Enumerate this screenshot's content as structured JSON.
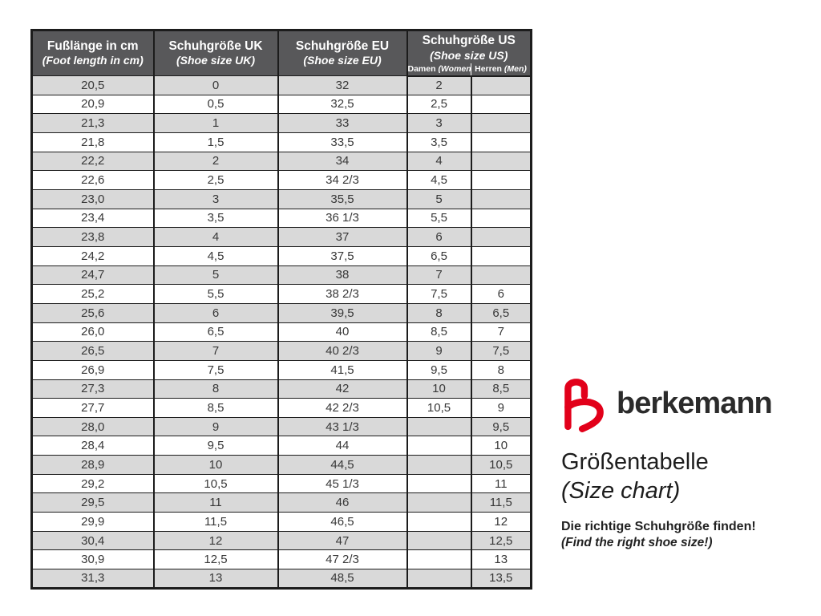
{
  "table": {
    "columns": [
      {
        "title": "Fußlänge in cm",
        "subtitle": "(Foot length in cm)"
      },
      {
        "title": "Schuhgröße UK",
        "subtitle": "(Shoe size UK)"
      },
      {
        "title": "Schuhgröße EU",
        "subtitle": "(Shoe size EU)"
      },
      {
        "title": "Schuhgröße US",
        "subtitle": "(Shoe size US)",
        "subcolumns": [
          {
            "label": "Damen",
            "note": "(Women)"
          },
          {
            "label": "Herren",
            "note": "(Men)"
          }
        ]
      }
    ],
    "rows": [
      [
        "20,5",
        "0",
        "32",
        "2",
        ""
      ],
      [
        "20,9",
        "0,5",
        "32,5",
        "2,5",
        ""
      ],
      [
        "21,3",
        "1",
        "33",
        "3",
        ""
      ],
      [
        "21,8",
        "1,5",
        "33,5",
        "3,5",
        ""
      ],
      [
        "22,2",
        "2",
        "34",
        "4",
        ""
      ],
      [
        "22,6",
        "2,5",
        "34 2/3",
        "4,5",
        ""
      ],
      [
        "23,0",
        "3",
        "35,5",
        "5",
        ""
      ],
      [
        "23,4",
        "3,5",
        "36 1/3",
        "5,5",
        ""
      ],
      [
        "23,8",
        "4",
        "37",
        "6",
        ""
      ],
      [
        "24,2",
        "4,5",
        "37,5",
        "6,5",
        ""
      ],
      [
        "24,7",
        "5",
        "38",
        "7",
        ""
      ],
      [
        "25,2",
        "5,5",
        "38 2/3",
        "7,5",
        "6"
      ],
      [
        "25,6",
        "6",
        "39,5",
        "8",
        "6,5"
      ],
      [
        "26,0",
        "6,5",
        "40",
        "8,5",
        "7"
      ],
      [
        "26,5",
        "7",
        "40 2/3",
        "9",
        "7,5"
      ],
      [
        "26,9",
        "7,5",
        "41,5",
        "9,5",
        "8"
      ],
      [
        "27,3",
        "8",
        "42",
        "10",
        "8,5"
      ],
      [
        "27,7",
        "8,5",
        "42 2/3",
        "10,5",
        "9"
      ],
      [
        "28,0",
        "9",
        "43 1/3",
        "",
        "9,5"
      ],
      [
        "28,4",
        "9,5",
        "44",
        "",
        "10"
      ],
      [
        "28,9",
        "10",
        "44,5",
        "",
        "10,5"
      ],
      [
        "29,2",
        "10,5",
        "45 1/3",
        "",
        "11"
      ],
      [
        "29,5",
        "11",
        "46",
        "",
        "11,5"
      ],
      [
        "29,9",
        "11,5",
        "46,5",
        "",
        "12"
      ],
      [
        "30,4",
        "12",
        "47",
        "",
        "12,5"
      ],
      [
        "30,9",
        "12,5",
        "47 2/3",
        "",
        "13"
      ],
      [
        "31,3",
        "13",
        "48,5",
        "",
        "13,5"
      ]
    ]
  },
  "branding": {
    "logo_text": "berkemann",
    "title": "Größentabelle",
    "title_en": "(Size chart)",
    "tagline": "Die richtige Schuhgröße finden!",
    "tagline_en": "(Find the right shoe size!)"
  },
  "colors": {
    "header_bg": "#58585a",
    "row_alt_bg": "#d9d9d9",
    "row_bg": "#ffffff",
    "grid_line": "#1c1c1c",
    "brand_red": "#e2001a",
    "cell_text": "#383838"
  }
}
